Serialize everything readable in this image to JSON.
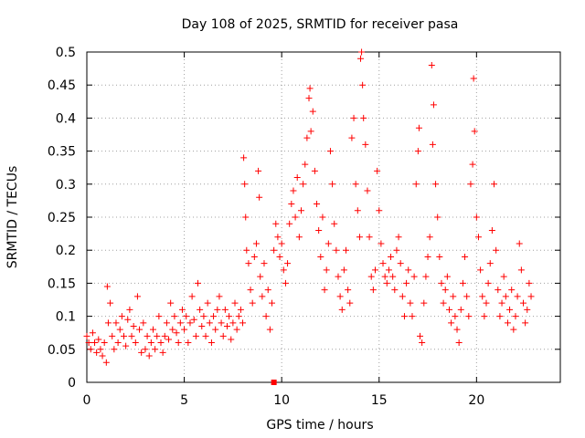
{
  "chart_data": {
    "type": "scatter",
    "title": "Day 108 of 2025, SRMTID for receiver pasa",
    "xlabel": "GPS time / hours",
    "ylabel": "SRMTID / TECUs",
    "xlim": [
      0,
      24.3
    ],
    "ylim": [
      0,
      0.5
    ],
    "xticks": [
      0,
      5,
      10,
      15,
      20
    ],
    "xtick_labels": [
      "0",
      "5",
      "10",
      "15",
      "20"
    ],
    "yticks": [
      0,
      0.05,
      0.1,
      0.15,
      0.2,
      0.25,
      0.3,
      0.35,
      0.4,
      0.45,
      0.5
    ],
    "ytick_labels": [
      "0",
      "0.05",
      "0.1",
      "0.15",
      "0.2",
      "0.25",
      "0.3",
      "0.35",
      "0.4",
      "0.45",
      "0.5"
    ],
    "grid": true,
    "series": [
      {
        "name": "SRMTID",
        "color": "#ff0000",
        "marker": "plus",
        "points": [
          [
            0.0,
            0.07
          ],
          [
            0.1,
            0.06
          ],
          [
            0.2,
            0.05
          ],
          [
            0.3,
            0.075
          ],
          [
            0.4,
            0.06
          ],
          [
            0.5,
            0.045
          ],
          [
            0.6,
            0.065
          ],
          [
            0.7,
            0.05
          ],
          [
            0.8,
            0.04
          ],
          [
            0.9,
            0.06
          ],
          [
            1.0,
            0.03
          ],
          [
            1.05,
            0.145
          ],
          [
            1.1,
            0.09
          ],
          [
            1.2,
            0.12
          ],
          [
            1.3,
            0.07
          ],
          [
            1.4,
            0.05
          ],
          [
            1.5,
            0.09
          ],
          [
            1.6,
            0.06
          ],
          [
            1.7,
            0.08
          ],
          [
            1.8,
            0.1
          ],
          [
            1.9,
            0.07
          ],
          [
            2.0,
            0.055
          ],
          [
            2.1,
            0.095
          ],
          [
            2.2,
            0.11
          ],
          [
            2.3,
            0.07
          ],
          [
            2.4,
            0.085
          ],
          [
            2.5,
            0.06
          ],
          [
            2.6,
            0.13
          ],
          [
            2.7,
            0.08
          ],
          [
            2.8,
            0.045
          ],
          [
            2.9,
            0.09
          ],
          [
            3.0,
            0.05
          ],
          [
            3.1,
            0.07
          ],
          [
            3.2,
            0.04
          ],
          [
            3.3,
            0.06
          ],
          [
            3.4,
            0.08
          ],
          [
            3.5,
            0.05
          ],
          [
            3.6,
            0.07
          ],
          [
            3.7,
            0.1
          ],
          [
            3.8,
            0.06
          ],
          [
            3.9,
            0.045
          ],
          [
            4.0,
            0.07
          ],
          [
            4.1,
            0.09
          ],
          [
            4.2,
            0.065
          ],
          [
            4.3,
            0.12
          ],
          [
            4.4,
            0.08
          ],
          [
            4.5,
            0.1
          ],
          [
            4.6,
            0.075
          ],
          [
            4.7,
            0.06
          ],
          [
            4.8,
            0.09
          ],
          [
            4.9,
            0.11
          ],
          [
            5.0,
            0.08
          ],
          [
            5.1,
            0.1
          ],
          [
            5.2,
            0.06
          ],
          [
            5.3,
            0.09
          ],
          [
            5.4,
            0.13
          ],
          [
            5.5,
            0.095
          ],
          [
            5.6,
            0.07
          ],
          [
            5.7,
            0.15
          ],
          [
            5.8,
            0.11
          ],
          [
            5.9,
            0.085
          ],
          [
            6.0,
            0.1
          ],
          [
            6.1,
            0.07
          ],
          [
            6.2,
            0.12
          ],
          [
            6.3,
            0.09
          ],
          [
            6.4,
            0.06
          ],
          [
            6.5,
            0.1
          ],
          [
            6.6,
            0.08
          ],
          [
            6.7,
            0.11
          ],
          [
            6.8,
            0.13
          ],
          [
            6.9,
            0.09
          ],
          [
            7.0,
            0.07
          ],
          [
            7.1,
            0.11
          ],
          [
            7.2,
            0.085
          ],
          [
            7.3,
            0.1
          ],
          [
            7.4,
            0.065
          ],
          [
            7.5,
            0.09
          ],
          [
            7.6,
            0.12
          ],
          [
            7.7,
            0.08
          ],
          [
            7.8,
            0.1
          ],
          [
            7.9,
            0.11
          ],
          [
            8.0,
            0.09
          ],
          [
            8.05,
            0.34
          ],
          [
            8.1,
            0.3
          ],
          [
            8.15,
            0.25
          ],
          [
            8.2,
            0.2
          ],
          [
            8.3,
            0.18
          ],
          [
            8.4,
            0.14
          ],
          [
            8.5,
            0.12
          ],
          [
            8.6,
            0.19
          ],
          [
            8.7,
            0.21
          ],
          [
            8.8,
            0.32
          ],
          [
            8.85,
            0.28
          ],
          [
            8.9,
            0.16
          ],
          [
            9.0,
            0.13
          ],
          [
            9.1,
            0.18
          ],
          [
            9.2,
            0.1
          ],
          [
            9.3,
            0.14
          ],
          [
            9.4,
            0.08
          ],
          [
            9.5,
            0.12
          ],
          [
            9.6,
            0.2
          ],
          [
            9.7,
            0.24
          ],
          [
            9.8,
            0.22
          ],
          [
            9.9,
            0.19
          ],
          [
            10.0,
            0.21
          ],
          [
            10.1,
            0.17
          ],
          [
            10.2,
            0.15
          ],
          [
            10.3,
            0.18
          ],
          [
            10.4,
            0.24
          ],
          [
            10.5,
            0.27
          ],
          [
            10.6,
            0.29
          ],
          [
            10.7,
            0.25
          ],
          [
            10.8,
            0.31
          ],
          [
            10.9,
            0.22
          ],
          [
            11.0,
            0.26
          ],
          [
            11.1,
            0.3
          ],
          [
            11.2,
            0.33
          ],
          [
            11.3,
            0.37
          ],
          [
            11.4,
            0.43
          ],
          [
            11.45,
            0.445
          ],
          [
            11.5,
            0.38
          ],
          [
            11.6,
            0.41
          ],
          [
            11.7,
            0.32
          ],
          [
            11.8,
            0.27
          ],
          [
            11.9,
            0.23
          ],
          [
            12.0,
            0.19
          ],
          [
            12.1,
            0.25
          ],
          [
            12.2,
            0.14
          ],
          [
            12.3,
            0.17
          ],
          [
            12.4,
            0.21
          ],
          [
            12.5,
            0.35
          ],
          [
            12.6,
            0.3
          ],
          [
            12.7,
            0.24
          ],
          [
            12.8,
            0.2
          ],
          [
            12.9,
            0.16
          ],
          [
            13.0,
            0.13
          ],
          [
            13.1,
            0.11
          ],
          [
            13.2,
            0.17
          ],
          [
            13.3,
            0.2
          ],
          [
            13.4,
            0.14
          ],
          [
            13.5,
            0.12
          ],
          [
            13.6,
            0.37
          ],
          [
            13.7,
            0.4
          ],
          [
            13.8,
            0.3
          ],
          [
            13.9,
            0.26
          ],
          [
            14.0,
            0.22
          ],
          [
            14.05,
            0.49
          ],
          [
            14.1,
            0.5
          ],
          [
            14.15,
            0.45
          ],
          [
            14.2,
            0.4
          ],
          [
            14.3,
            0.36
          ],
          [
            14.4,
            0.29
          ],
          [
            14.5,
            0.22
          ],
          [
            14.6,
            0.16
          ],
          [
            14.7,
            0.14
          ],
          [
            14.8,
            0.17
          ],
          [
            14.9,
            0.32
          ],
          [
            15.0,
            0.26
          ],
          [
            15.1,
            0.21
          ],
          [
            15.2,
            0.18
          ],
          [
            15.3,
            0.16
          ],
          [
            15.4,
            0.15
          ],
          [
            15.5,
            0.17
          ],
          [
            15.6,
            0.19
          ],
          [
            15.7,
            0.16
          ],
          [
            15.8,
            0.14
          ],
          [
            15.9,
            0.2
          ],
          [
            16.0,
            0.22
          ],
          [
            16.1,
            0.18
          ],
          [
            16.2,
            0.13
          ],
          [
            16.3,
            0.1
          ],
          [
            16.4,
            0.15
          ],
          [
            16.5,
            0.17
          ],
          [
            16.6,
            0.12
          ],
          [
            16.7,
            0.1
          ],
          [
            16.8,
            0.16
          ],
          [
            16.9,
            0.3
          ],
          [
            17.0,
            0.35
          ],
          [
            17.05,
            0.385
          ],
          [
            17.1,
            0.07
          ],
          [
            17.2,
            0.06
          ],
          [
            17.3,
            0.12
          ],
          [
            17.4,
            0.16
          ],
          [
            17.5,
            0.19
          ],
          [
            17.6,
            0.22
          ],
          [
            17.7,
            0.48
          ],
          [
            17.75,
            0.36
          ],
          [
            17.8,
            0.42
          ],
          [
            17.9,
            0.3
          ],
          [
            18.0,
            0.25
          ],
          [
            18.1,
            0.19
          ],
          [
            18.2,
            0.15
          ],
          [
            18.3,
            0.12
          ],
          [
            18.4,
            0.14
          ],
          [
            18.5,
            0.16
          ],
          [
            18.6,
            0.11
          ],
          [
            18.7,
            0.09
          ],
          [
            18.8,
            0.13
          ],
          [
            18.9,
            0.1
          ],
          [
            19.0,
            0.08
          ],
          [
            19.1,
            0.06
          ],
          [
            19.2,
            0.11
          ],
          [
            19.3,
            0.15
          ],
          [
            19.4,
            0.19
          ],
          [
            19.5,
            0.13
          ],
          [
            19.6,
            0.1
          ],
          [
            19.7,
            0.3
          ],
          [
            19.8,
            0.33
          ],
          [
            19.85,
            0.46
          ],
          [
            19.9,
            0.38
          ],
          [
            20.0,
            0.25
          ],
          [
            20.1,
            0.22
          ],
          [
            20.2,
            0.17
          ],
          [
            20.3,
            0.13
          ],
          [
            20.4,
            0.1
          ],
          [
            20.5,
            0.12
          ],
          [
            20.6,
            0.15
          ],
          [
            20.7,
            0.18
          ],
          [
            20.8,
            0.23
          ],
          [
            20.9,
            0.3
          ],
          [
            21.0,
            0.2
          ],
          [
            21.1,
            0.14
          ],
          [
            21.2,
            0.1
          ],
          [
            21.3,
            0.12
          ],
          [
            21.4,
            0.16
          ],
          [
            21.5,
            0.13
          ],
          [
            21.6,
            0.09
          ],
          [
            21.7,
            0.11
          ],
          [
            21.8,
            0.14
          ],
          [
            21.9,
            0.08
          ],
          [
            22.0,
            0.1
          ],
          [
            22.1,
            0.13
          ],
          [
            22.2,
            0.21
          ],
          [
            22.3,
            0.17
          ],
          [
            22.4,
            0.12
          ],
          [
            22.5,
            0.09
          ],
          [
            22.6,
            0.11
          ],
          [
            22.7,
            0.15
          ],
          [
            22.8,
            0.13
          ]
        ]
      }
    ],
    "annotations": [
      {
        "type": "square-marker",
        "x": 9.6,
        "y": 0.0,
        "color": "#ff0000"
      }
    ]
  }
}
